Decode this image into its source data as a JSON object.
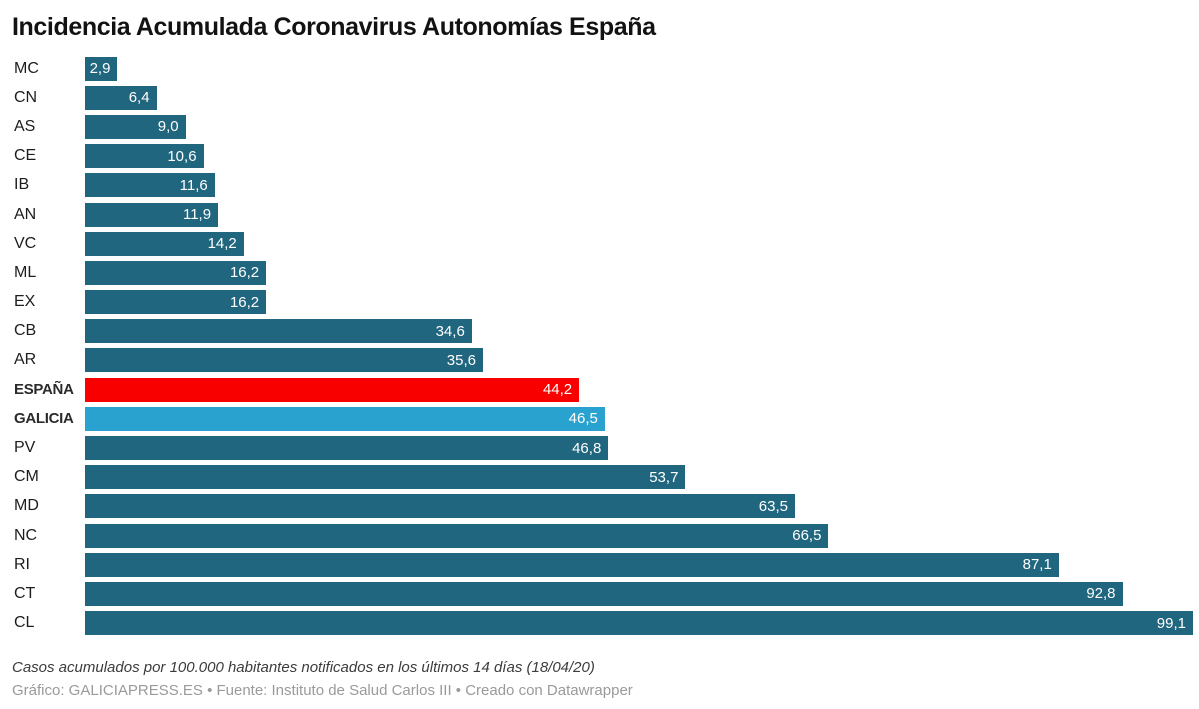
{
  "title": "Incidencia Acumulada Coronavirus Autonomías España",
  "colors": {
    "bar": "#20667e",
    "espana": "#f80000",
    "galicia": "#29a2d0",
    "value_text": "#ffffff"
  },
  "chart_data": {
    "type": "bar",
    "orientation": "horizontal",
    "title": "Incidencia Acumulada Coronavirus Autonomías España",
    "xlabel": "",
    "ylabel": "",
    "xlim": [
      0,
      99.1
    ],
    "grid": false,
    "legend": "none",
    "value_format": "decimal comma, one decimal",
    "categories": [
      "MC",
      "CN",
      "AS",
      "CE",
      "IB",
      "AN",
      "VC",
      "ML",
      "EX",
      "CB",
      "AR",
      "ESPAÑA",
      "GALICIA",
      "PV",
      "CM",
      "MD",
      "NC",
      "RI",
      "CT",
      "CL"
    ],
    "values": [
      2.9,
      6.4,
      9.0,
      10.6,
      11.6,
      11.9,
      14.2,
      16.2,
      16.2,
      34.6,
      35.6,
      44.2,
      46.5,
      46.8,
      53.7,
      63.5,
      66.5,
      87.1,
      92.8,
      99.1
    ],
    "bars": [
      {
        "label": "MC",
        "value": 2.9,
        "value_label": "2,9",
        "emphasis": false,
        "color_key": "bar"
      },
      {
        "label": "CN",
        "value": 6.4,
        "value_label": "6,4",
        "emphasis": false,
        "color_key": "bar"
      },
      {
        "label": "AS",
        "value": 9.0,
        "value_label": "9,0",
        "emphasis": false,
        "color_key": "bar"
      },
      {
        "label": "CE",
        "value": 10.6,
        "value_label": "10,6",
        "emphasis": false,
        "color_key": "bar"
      },
      {
        "label": "IB",
        "value": 11.6,
        "value_label": "11,6",
        "emphasis": false,
        "color_key": "bar"
      },
      {
        "label": "AN",
        "value": 11.9,
        "value_label": "11,9",
        "emphasis": false,
        "color_key": "bar"
      },
      {
        "label": "VC",
        "value": 14.2,
        "value_label": "14,2",
        "emphasis": false,
        "color_key": "bar"
      },
      {
        "label": "ML",
        "value": 16.2,
        "value_label": "16,2",
        "emphasis": false,
        "color_key": "bar"
      },
      {
        "label": "EX",
        "value": 16.2,
        "value_label": "16,2",
        "emphasis": false,
        "color_key": "bar"
      },
      {
        "label": "CB",
        "value": 34.6,
        "value_label": "34,6",
        "emphasis": false,
        "color_key": "bar"
      },
      {
        "label": "AR",
        "value": 35.6,
        "value_label": "35,6",
        "emphasis": false,
        "color_key": "bar"
      },
      {
        "label": "ESPAÑA",
        "value": 44.2,
        "value_label": "44,2",
        "emphasis": true,
        "color_key": "espana"
      },
      {
        "label": "GALICIA",
        "value": 46.5,
        "value_label": "46,5",
        "emphasis": true,
        "color_key": "galicia"
      },
      {
        "label": "PV",
        "value": 46.8,
        "value_label": "46,8",
        "emphasis": false,
        "color_key": "bar"
      },
      {
        "label": "CM",
        "value": 53.7,
        "value_label": "53,7",
        "emphasis": false,
        "color_key": "bar"
      },
      {
        "label": "MD",
        "value": 63.5,
        "value_label": "63,5",
        "emphasis": false,
        "color_key": "bar"
      },
      {
        "label": "NC",
        "value": 66.5,
        "value_label": "66,5",
        "emphasis": false,
        "color_key": "bar"
      },
      {
        "label": "RI",
        "value": 87.1,
        "value_label": "87,1",
        "emphasis": false,
        "color_key": "bar"
      },
      {
        "label": "CT",
        "value": 92.8,
        "value_label": "92,8",
        "emphasis": false,
        "color_key": "bar"
      },
      {
        "label": "CL",
        "value": 99.1,
        "value_label": "99,1",
        "emphasis": false,
        "color_key": "bar"
      }
    ]
  },
  "footer": {
    "note": "Casos acumulados por 100.000 habitantes notificados en los últimos 14 días (18/04/20)",
    "attribution": "Gráfico: GALICIAPRESS.ES • Fuente: Instituto de Salud Carlos III • Creado con Datawrapper"
  }
}
